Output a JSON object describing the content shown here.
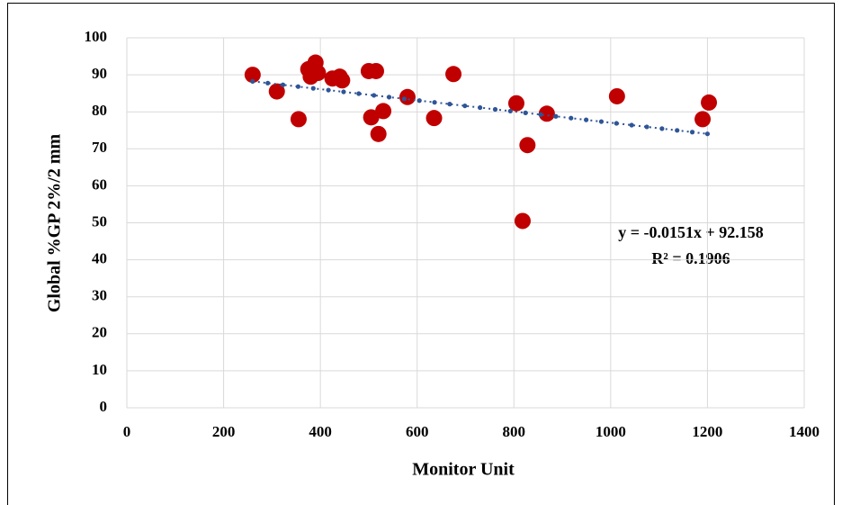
{
  "chart_data": {
    "type": "scatter",
    "x_label": "Monitor Unit",
    "y_label": "Global %GP 2%/2 mm",
    "x": [
      260,
      310,
      355,
      375,
      380,
      390,
      395,
      425,
      440,
      445,
      500,
      515,
      505,
      520,
      530,
      580,
      635,
      675,
      805,
      818,
      828,
      868,
      1013,
      1190,
      1203
    ],
    "series": [
      {
        "color": "#c00000",
        "values": [
          90,
          85.5,
          78,
          91.5,
          89.5,
          93.3,
          90.5,
          89,
          89.5,
          88.5,
          91,
          91,
          78.5,
          74,
          80.2,
          84,
          78.3,
          90.2,
          82.3,
          50.5,
          71,
          79.5,
          84.2,
          78,
          82.5
        ]
      }
    ],
    "trendline": {
      "slope": -0.0151,
      "intercept": 92.158,
      "xlim": [
        260,
        1200
      ],
      "color": "#2f5597",
      "equation": "y = -0.0151x + 92.158",
      "r2": "R² = 0.1906"
    },
    "xlim": [
      0,
      1400
    ],
    "xticks": [
      0,
      200,
      400,
      600,
      800,
      1000,
      1200,
      1400
    ],
    "ylim": [
      0,
      100
    ],
    "yticks": [
      0,
      10,
      20,
      30,
      40,
      50,
      60,
      70,
      80,
      90,
      100
    ],
    "grid": true
  }
}
